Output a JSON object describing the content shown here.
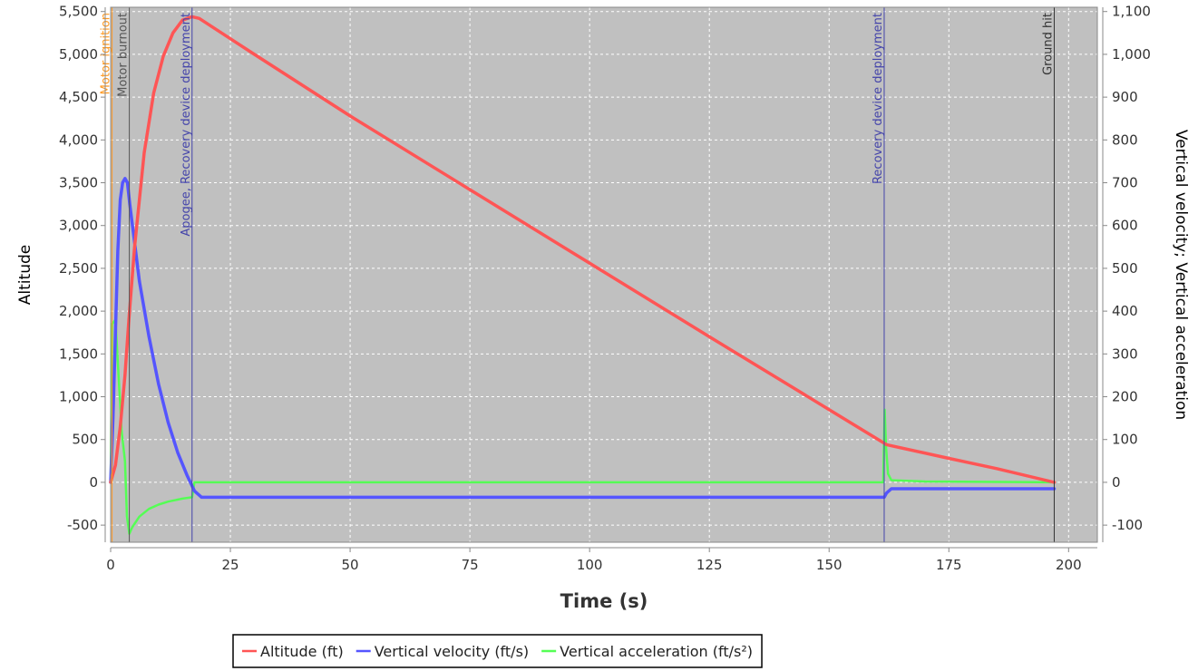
{
  "chart_data": {
    "type": "line",
    "title": "",
    "xlabel": "Time (s)",
    "ylabel_left": "Altitude",
    "ylabel_right": "Vertical velocity; Vertical acceleration",
    "xlim": [
      0,
      206
    ],
    "ylim_left": [
      -700,
      5550
    ],
    "ylim_right": [
      -140,
      1110
    ],
    "x_ticks": [
      0,
      25,
      50,
      75,
      100,
      125,
      150,
      175,
      200
    ],
    "x_tick_labels": [
      "0",
      "25",
      "50",
      "75",
      "100",
      "125",
      "150",
      "175",
      "200"
    ],
    "y_left_ticks": [
      -500,
      0,
      500,
      1000,
      1500,
      2000,
      2500,
      3000,
      3500,
      4000,
      4500,
      5000,
      5500
    ],
    "y_left_tick_labels": [
      "-500",
      "0",
      "500",
      "1,000",
      "1,500",
      "2,000",
      "2,500",
      "3,000",
      "3,500",
      "4,000",
      "4,500",
      "5,000",
      "5,500"
    ],
    "y_right_ticks": [
      -100,
      0,
      100,
      200,
      300,
      400,
      500,
      600,
      700,
      800,
      900,
      1000,
      1100
    ],
    "y_right_tick_labels": [
      "-100",
      "0",
      "100",
      "200",
      "300",
      "400",
      "500",
      "600",
      "700",
      "800",
      "900",
      "1,000",
      "1,100"
    ],
    "grid": true,
    "legend_position": "bottom",
    "series": [
      {
        "name": "Altitude (ft)",
        "axis": "left",
        "color": "#ff5555",
        "x": [
          0,
          1,
          2,
          3,
          3.8,
          5,
          7,
          9,
          11,
          13,
          15,
          17,
          18.5,
          30,
          50,
          75,
          100,
          125,
          150,
          162,
          175,
          185,
          197
        ],
        "y": [
          0,
          200,
          650,
          1250,
          1900,
          2750,
          3850,
          4550,
          4980,
          5250,
          5400,
          5440,
          5420,
          5000,
          4280,
          3420,
          2560,
          1700,
          850,
          440,
          280,
          160,
          0
        ]
      },
      {
        "name": "Vertical velocity (ft/s)",
        "axis": "right",
        "color": "#5555ff",
        "x": [
          0,
          0.5,
          1,
          1.5,
          2,
          2.5,
          3,
          3.5,
          4,
          5,
          6,
          8,
          10,
          12,
          14,
          16,
          17.5,
          19,
          30,
          60,
          100,
          140,
          161.5,
          162,
          163,
          197
        ],
        "y": [
          0,
          150,
          350,
          540,
          660,
          700,
          710,
          700,
          650,
          560,
          470,
          340,
          230,
          140,
          70,
          15,
          -20,
          -35,
          -35,
          -35,
          -35,
          -35,
          -35,
          -25,
          -15,
          -15
        ]
      },
      {
        "name": "Vertical acceleration (ft/s²)",
        "axis": "right",
        "color": "#55ff55",
        "x": [
          0,
          0.3,
          1,
          1.8,
          2.3,
          3,
          3.4,
          3.9,
          4.5,
          6,
          8,
          10,
          12,
          15,
          17,
          17.5,
          30,
          100,
          161.3,
          161.6,
          161.9,
          162.3,
          163,
          170,
          197
        ],
        "y": [
          0,
          370,
          380,
          220,
          120,
          50,
          -80,
          -120,
          -105,
          -80,
          -62,
          -52,
          -45,
          -38,
          -35,
          0,
          0,
          0,
          0,
          170,
          80,
          20,
          5,
          2,
          0
        ]
      }
    ],
    "events": [
      {
        "label": "Motor ignition",
        "x": 0.3,
        "color": "#ff9922"
      },
      {
        "label": "Motor burnout",
        "x": 3.9,
        "color": "#555555"
      },
      {
        "label": "Apogee, Recovery device deployment",
        "x": 17,
        "color": "#4444aa"
      },
      {
        "label": "Recovery device deployment",
        "x": 161.5,
        "color": "#4444aa"
      },
      {
        "label": "Ground hit",
        "x": 197,
        "color": "#333333"
      }
    ]
  }
}
